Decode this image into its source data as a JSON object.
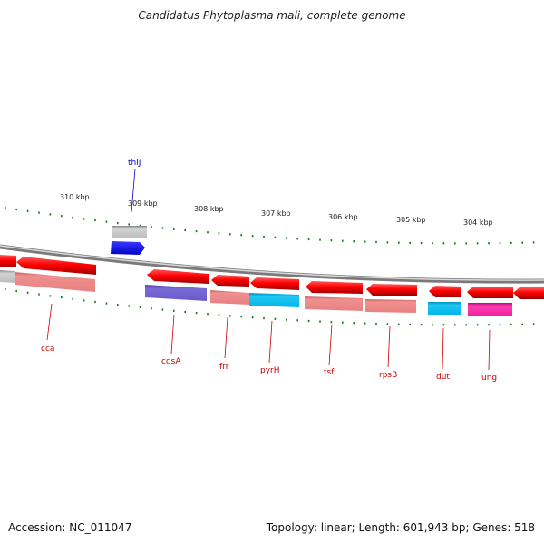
{
  "title": "Candidatus Phytoplasma mali, complete genome",
  "footer": {
    "accession": "Accession: NC_011047",
    "summary": "Topology: linear; Length: 601,943 bp; Genes: 518"
  },
  "colors": {
    "forward_feature": "#ff0000",
    "backbone": "#888888",
    "tick": "#1a7a1a",
    "label_red": "#cc0000",
    "label_blue": "#0000cc"
  },
  "scale": {
    "tick_labels": [
      "310 kbp",
      "309 kbp",
      "308 kbp",
      "307 kbp",
      "306 kbp",
      "305 kbp",
      "304 kbp"
    ]
  },
  "genes": [
    {
      "label": "thiJ",
      "label_color": "#0000cc"
    },
    {
      "label": "cca",
      "label_color": "#cc0000"
    },
    {
      "label": "cdsA",
      "label_color": "#cc0000"
    },
    {
      "label": "frr",
      "label_color": "#cc0000"
    },
    {
      "label": "pyrH",
      "label_color": "#cc0000"
    },
    {
      "label": "tsf",
      "label_color": "#cc0000"
    },
    {
      "label": "rpsB",
      "label_color": "#cc0000"
    },
    {
      "label": "dut",
      "label_color": "#cc0000"
    },
    {
      "label": "ung",
      "label_color": "#cc0000"
    }
  ]
}
